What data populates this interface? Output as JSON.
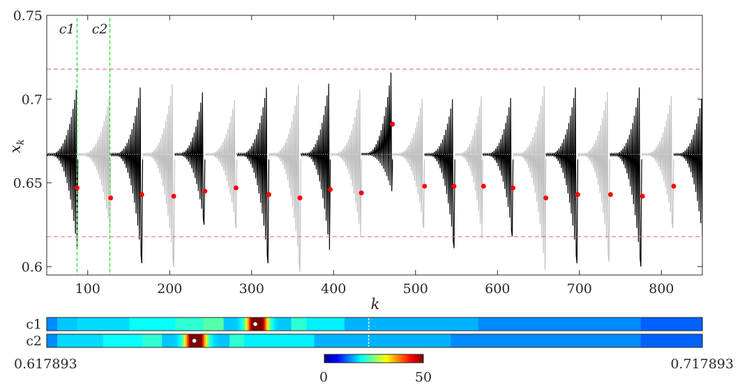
{
  "chart_data": {
    "type": "line",
    "xlabel": "k",
    "ylabel": "x",
    "ylabel_sub": "k",
    "xlim": [
      50,
      850
    ],
    "ylim": [
      0.595,
      0.75
    ],
    "xticks": [
      100,
      200,
      300,
      400,
      500,
      600,
      700,
      800
    ],
    "xtick_labels": [
      "100",
      "200",
      "300",
      "400",
      "500",
      "600",
      "700",
      "800"
    ],
    "yticks": [
      0.6,
      0.65,
      0.7,
      0.75
    ],
    "ytick_labels": [
      "0.6",
      "0.65",
      "0.7",
      "0.75"
    ],
    "fixed_point": 0.667,
    "bounds": [
      0.617893,
      0.717893
    ],
    "grid": false,
    "vlines": [
      {
        "label": "c1",
        "x": 87
      },
      {
        "label": "c2",
        "x": 127
      }
    ],
    "segments": [
      {
        "start": 50,
        "end": 87,
        "color": "black",
        "spike_min": 0.611,
        "spike_max": 0.709
      },
      {
        "start": 88,
        "end": 127,
        "color": "gray",
        "spike_min": 0.622,
        "spike_max": 0.703
      },
      {
        "start": 128,
        "end": 166,
        "color": "black",
        "spike_min": 0.602,
        "spike_max": 0.714
      },
      {
        "start": 167,
        "end": 205,
        "color": "gray",
        "spike_min": 0.6,
        "spike_max": 0.716
      },
      {
        "start": 206,
        "end": 242,
        "color": "black",
        "spike_min": 0.625,
        "spike_max": 0.711
      },
      {
        "start": 243,
        "end": 281,
        "color": "gray",
        "spike_min": 0.623,
        "spike_max": 0.705
      },
      {
        "start": 282,
        "end": 320,
        "color": "black",
        "spike_min": 0.602,
        "spike_max": 0.714
      },
      {
        "start": 321,
        "end": 359,
        "color": "gray",
        "spike_min": 0.597,
        "spike_max": 0.716
      },
      {
        "start": 360,
        "end": 395,
        "color": "black",
        "spike_min": 0.61,
        "spike_max": 0.713
      },
      {
        "start": 396,
        "end": 433,
        "color": "gray",
        "spike_min": 0.618,
        "spike_max": 0.709
      },
      {
        "start": 434,
        "end": 471,
        "color": "black",
        "spike_min": 0.645,
        "spike_max": 0.72
      },
      {
        "start": 472,
        "end": 510,
        "color": "gray",
        "spike_min": 0.623,
        "spike_max": 0.706
      },
      {
        "start": 511,
        "end": 547,
        "color": "black",
        "spike_min": 0.611,
        "spike_max": 0.706
      },
      {
        "start": 548,
        "end": 581,
        "color": "gray",
        "spike_min": 0.617,
        "spike_max": 0.705
      },
      {
        "start": 582,
        "end": 618,
        "color": "black",
        "spike_min": 0.618,
        "spike_max": 0.707
      },
      {
        "start": 619,
        "end": 658,
        "color": "gray",
        "spike_min": 0.598,
        "spike_max": 0.711
      },
      {
        "start": 659,
        "end": 697,
        "color": "black",
        "spike_min": 0.602,
        "spike_max": 0.714
      },
      {
        "start": 698,
        "end": 736,
        "color": "gray",
        "spike_min": 0.603,
        "spike_max": 0.711
      },
      {
        "start": 737,
        "end": 775,
        "color": "black",
        "spike_min": 0.6,
        "spike_max": 0.714
      },
      {
        "start": 776,
        "end": 814,
        "color": "gray",
        "spike_min": 0.623,
        "spike_max": 0.708
      },
      {
        "start": 815,
        "end": 850,
        "color": "black",
        "spike_min": 0.618,
        "spike_max": 0.703
      }
    ],
    "markers": [
      {
        "x": 87,
        "y": 0.647
      },
      {
        "x": 128,
        "y": 0.641
      },
      {
        "x": 166,
        "y": 0.643
      },
      {
        "x": 205,
        "y": 0.642
      },
      {
        "x": 243,
        "y": 0.645
      },
      {
        "x": 281,
        "y": 0.647
      },
      {
        "x": 321,
        "y": 0.643
      },
      {
        "x": 359,
        "y": 0.641
      },
      {
        "x": 396,
        "y": 0.646
      },
      {
        "x": 434,
        "y": 0.644
      },
      {
        "x": 472,
        "y": 0.685
      },
      {
        "x": 511,
        "y": 0.648
      },
      {
        "x": 547,
        "y": 0.648
      },
      {
        "x": 583,
        "y": 0.648
      },
      {
        "x": 619,
        "y": 0.647
      },
      {
        "x": 659,
        "y": 0.641
      },
      {
        "x": 698,
        "y": 0.643
      },
      {
        "x": 738,
        "y": 0.643
      },
      {
        "x": 777,
        "y": 0.642
      },
      {
        "x": 815,
        "y": 0.648
      }
    ],
    "strips": {
      "range": [
        0.617893,
        0.717893
      ],
      "range_labels": [
        "0.617893",
        "0.717893"
      ],
      "dashed_mark": 0.667,
      "rows": [
        {
          "label": "c1",
          "peak": 0.65,
          "width": 0.0032,
          "height": 48,
          "level": 16,
          "marker": 0.6497,
          "steps": [
            {
              "from": 0.617893,
              "to": 0.6195,
              "value": 13
            },
            {
              "from": 0.6195,
              "to": 0.6225,
              "value": 16
            },
            {
              "from": 0.6225,
              "to": 0.6305,
              "value": 17
            },
            {
              "from": 0.6305,
              "to": 0.6375,
              "value": 19
            },
            {
              "from": 0.6375,
              "to": 0.6418,
              "value": 21
            },
            {
              "from": 0.6418,
              "to": 0.6455,
              "value": 23
            },
            {
              "from": 0.6455,
              "to": 0.654,
              "value": 25
            },
            {
              "from": 0.654,
              "to": 0.6575,
              "value": 21
            },
            {
              "from": 0.6575,
              "to": 0.6633,
              "value": 18
            },
            {
              "from": 0.6633,
              "to": 0.6837,
              "value": 15
            },
            {
              "from": 0.6837,
              "to": 0.7085,
              "value": 13
            },
            {
              "from": 0.7085,
              "to": 0.717893,
              "value": 11
            }
          ]
        },
        {
          "label": "c2",
          "peak": 0.6406,
          "width": 0.0032,
          "height": 48,
          "level": 16,
          "marker": 0.6404,
          "steps": [
            {
              "from": 0.617893,
              "to": 0.6195,
              "value": 13
            },
            {
              "from": 0.6195,
              "to": 0.6265,
              "value": 17
            },
            {
              "from": 0.6265,
              "to": 0.6325,
              "value": 19
            },
            {
              "from": 0.6325,
              "to": 0.6358,
              "value": 21
            },
            {
              "from": 0.6358,
              "to": 0.6448,
              "value": 25
            },
            {
              "from": 0.6448,
              "to": 0.648,
              "value": 21
            },
            {
              "from": 0.648,
              "to": 0.6587,
              "value": 18
            },
            {
              "from": 0.6587,
              "to": 0.6795,
              "value": 15
            },
            {
              "from": 0.6795,
              "to": 0.7085,
              "value": 13
            },
            {
              "from": 0.7085,
              "to": 0.717893,
              "value": 11
            }
          ]
        }
      ]
    },
    "colorbar": {
      "colormap": "jet",
      "min": 0,
      "max": 50,
      "labels": [
        "0",
        "50"
      ]
    }
  },
  "colors": {
    "black_series": "#000000",
    "gray_series": "#c0c0c0",
    "marker": "#ff0000",
    "bound_line": "#e8707e",
    "vline": "#44dd44",
    "axis": "#262626"
  }
}
